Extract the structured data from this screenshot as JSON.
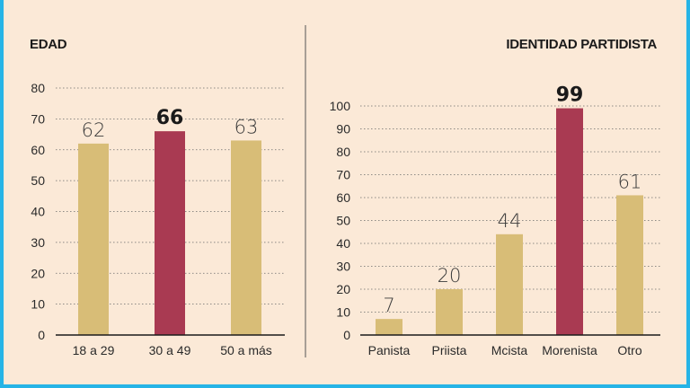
{
  "colors": {
    "background": "#fbe9d7",
    "border": "#26b4e6",
    "bar": "#d8bd77",
    "highlight": "#a93a52"
  },
  "chart_data": [
    {
      "type": "bar",
      "title": "EDAD",
      "categories": [
        "18 a 29",
        "30 a 49",
        "50 a más"
      ],
      "values": [
        62,
        66,
        63
      ],
      "data_labels": [
        "62",
        "66",
        "63"
      ],
      "highlight_index": 1,
      "ylim": [
        0,
        80
      ],
      "yticks": [
        "0",
        "10",
        "20",
        "30",
        "40",
        "50",
        "60",
        "70",
        "80"
      ],
      "grid": true
    },
    {
      "type": "bar",
      "title": "IDENTIDAD PARTIDISTA",
      "categories": [
        "Panista",
        "Priista",
        "Mcista",
        "Morenista",
        "Otro"
      ],
      "values": [
        7,
        20,
        44,
        99,
        61
      ],
      "data_labels": [
        "7",
        "20",
        "44",
        "99",
        "61"
      ],
      "highlight_index": 3,
      "ylim": [
        0,
        100
      ],
      "yticks": [
        "0",
        "10",
        "20",
        "30",
        "40",
        "50",
        "60",
        "70",
        "80",
        "90",
        "100"
      ],
      "grid": true
    }
  ]
}
